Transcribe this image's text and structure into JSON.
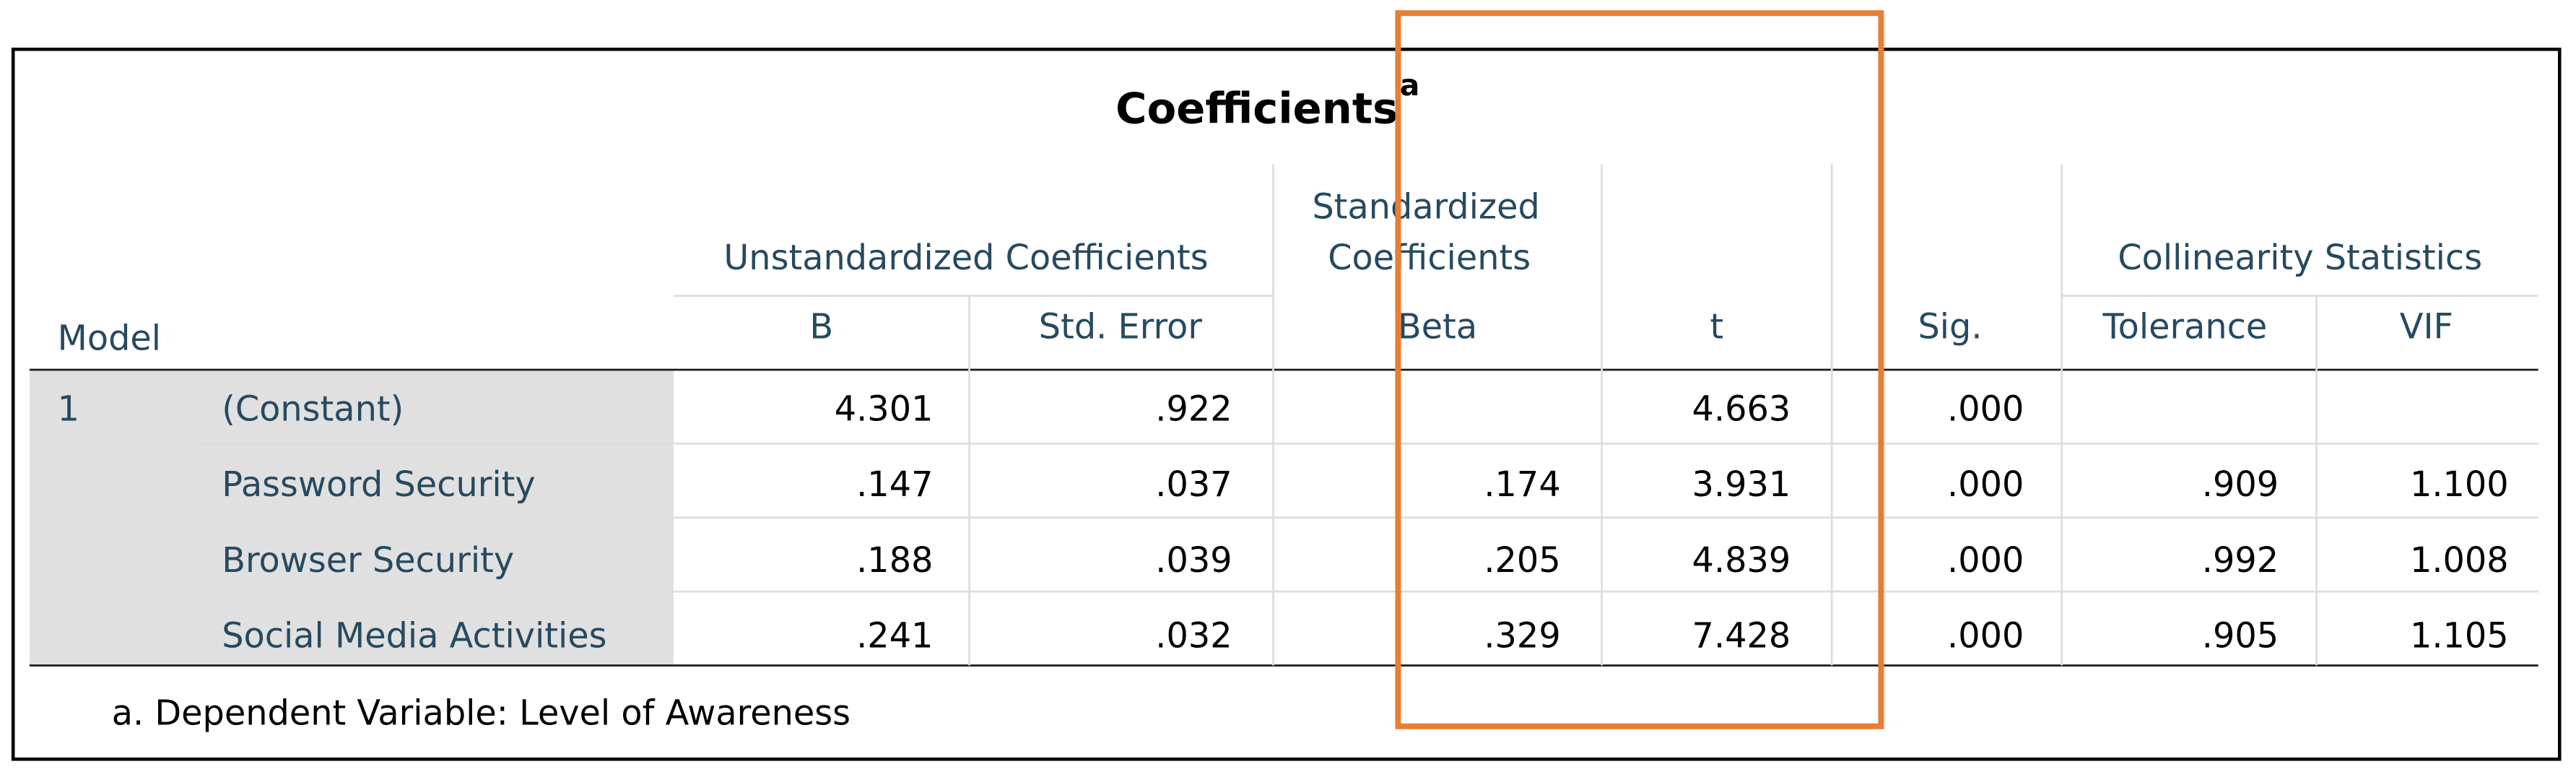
{
  "table": {
    "title": "Coefficients",
    "title_note": "a",
    "headers": {
      "model": "Model",
      "unstandardized": "Unstandardized Coefficients",
      "standardized": [
        "Standardized",
        "Coefficients"
      ],
      "collinearity": "Collinearity Statistics"
    },
    "columns": [
      "B",
      "Std. Error",
      "Beta",
      "t",
      "Sig.",
      "Tolerance",
      "VIF"
    ],
    "rows": [
      {
        "model": "1",
        "label": "(Constant)",
        "cells": [
          "4.301",
          ".922",
          null,
          "4.663",
          ".000",
          null,
          null
        ]
      },
      {
        "model": null,
        "label": "Password Security",
        "cells": [
          ".147",
          ".037",
          ".174",
          "3.931",
          ".000",
          ".909",
          "1.100"
        ]
      },
      {
        "model": null,
        "label": "Browser Security",
        "cells": [
          ".188",
          ".039",
          ".205",
          "4.839",
          ".000",
          ".992",
          "1.008"
        ]
      },
      {
        "model": null,
        "label": "Social Media Activities",
        "cells": [
          ".241",
          ".032",
          ".329",
          "7.428",
          ".000",
          ".905",
          "1.105"
        ]
      }
    ],
    "footnote": "a. Dependent Variable: Level of Awareness"
  }
}
